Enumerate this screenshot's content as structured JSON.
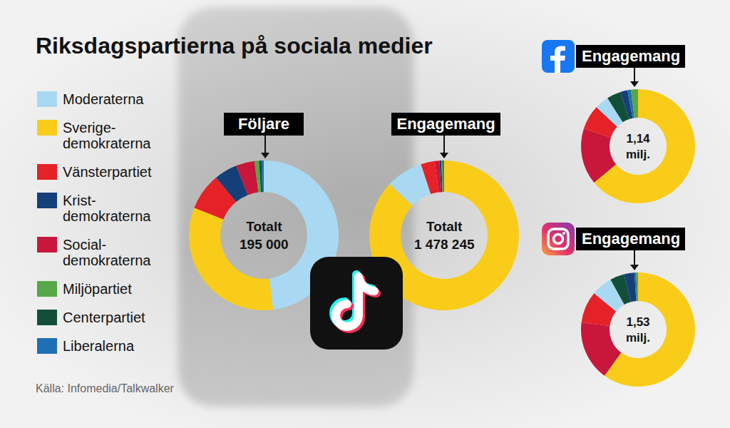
{
  "title": "Riksdagspartierna på sociala medier",
  "legend_items": [
    {
      "label": "Moderaterna",
      "color": "#a9d9f2"
    },
    {
      "label": "Sverige-\ndemokraterna",
      "color": "#f9cc1a"
    },
    {
      "label": "Vänsterpartiet",
      "color": "#e42228"
    },
    {
      "label": "Krist-\ndemokraterna",
      "color": "#153f78"
    },
    {
      "label": "Social-\ndemokraterna",
      "color": "#c8173a"
    },
    {
      "label": "Miljöpartiet",
      "color": "#55a84a"
    },
    {
      "label": "Centerpartiet",
      "color": "#134e38"
    },
    {
      "label": "Liberalerna",
      "color": "#1f6fb6"
    }
  ],
  "source": "Källa: Infomedia/Talkwalker",
  "chart_data": [
    {
      "type": "pie",
      "title": "Följare",
      "center_text": [
        "Totalt",
        "195 000"
      ],
      "categories": [
        "Moderaterna",
        "Sverige-\ndemokraterna",
        "Vänsterpartiet",
        "Krist-\ndemokraterna",
        "Social-\ndemokraterna",
        "Miljöpartiet",
        "Centerpartiet",
        "Liberalerna"
      ],
      "values": [
        48,
        33,
        8,
        5,
        4,
        1,
        0.5,
        0.5
      ],
      "colors": [
        "#a9d9f2",
        "#f9cc1a",
        "#e42228",
        "#153f78",
        "#c8173a",
        "#55a84a",
        "#134e38",
        "#1f6fb6"
      ]
    },
    {
      "type": "pie",
      "title": "Engagemang",
      "center_text": [
        "Totalt",
        "1 478 245"
      ],
      "categories": [
        "Sverige-\ndemokraterna",
        "Moderaterna",
        "Vänsterpartiet",
        "Social-\ndemokraterna",
        "Krist-\ndemokraterna",
        "Miljöpartiet",
        "Centerpartiet",
        "Liberalerna"
      ],
      "values": [
        87,
        8,
        3,
        1,
        0.4,
        0.3,
        0.2,
        0.1
      ],
      "colors": [
        "#f9cc1a",
        "#a9d9f2",
        "#e42228",
        "#c8173a",
        "#153f78",
        "#55a84a",
        "#134e38",
        "#1f6fb6"
      ]
    },
    {
      "type": "pie",
      "title": "Engagemang",
      "center_text": [
        "1,14",
        "milj."
      ],
      "categories": [
        "Sverige-\ndemokraterna",
        "Social-\ndemokraterna",
        "Vänsterpartiet",
        "Moderaterna",
        "Centerpartiet",
        "Krist-\ndemokraterna",
        "Liberalerna",
        "Miljöpartiet"
      ],
      "values": [
        64,
        16,
        7,
        4,
        4,
        2,
        1,
        2
      ],
      "colors": [
        "#f9cc1a",
        "#c8173a",
        "#e42228",
        "#a9d9f2",
        "#134e38",
        "#153f78",
        "#1f6fb6",
        "#55a84a"
      ]
    },
    {
      "type": "pie",
      "title": "Engagemang",
      "center_text": [
        "1,53",
        "milj."
      ],
      "categories": [
        "Sverige-\ndemokraterna",
        "Social-\ndemokraterna",
        "Vänsterpartiet",
        "Moderaterna",
        "Centerpartiet",
        "Krist-\ndemokraterna",
        "Liberalerna",
        "Miljöpartiet"
      ],
      "values": [
        60,
        17,
        9,
        6,
        4,
        3,
        0.5,
        0.5
      ],
      "colors": [
        "#f9cc1a",
        "#c8173a",
        "#e42228",
        "#a9d9f2",
        "#134e38",
        "#153f78",
        "#1f6fb6",
        "#55a84a"
      ]
    }
  ]
}
